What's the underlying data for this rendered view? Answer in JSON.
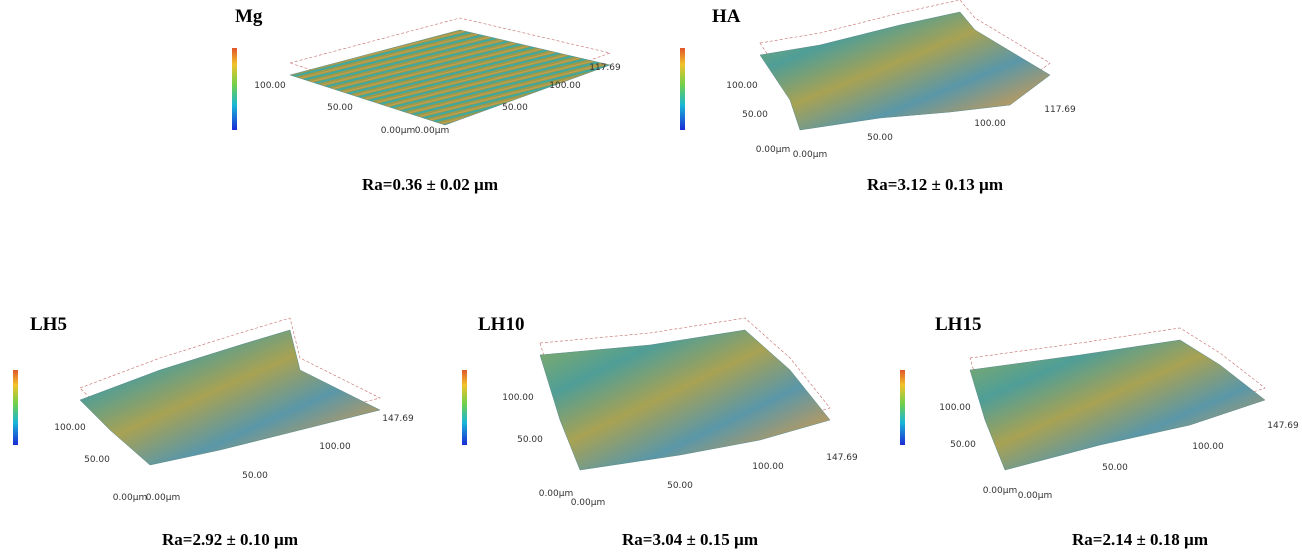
{
  "panels": [
    {
      "label": "Mg",
      "roughness": "Ra=0.36 ± 0.02 µm",
      "axis_labels": [
        "100.00",
        "50.00",
        "0.00µm",
        "0.00µm",
        "50.00",
        "100.00",
        "117.69"
      ]
    },
    {
      "label": "HA",
      "roughness": "Ra=3.12 ± 0.13 µm",
      "axis_labels": [
        "100.00",
        "50.00",
        "0.00µm",
        "0.00µm",
        "50.00",
        "100.00",
        "117.69"
      ]
    },
    {
      "label": "LH5",
      "roughness": "Ra=2.92 ± 0.10 µm",
      "axis_labels": [
        "100.00",
        "50.00",
        "0.00µm",
        "0.00µm",
        "50.00",
        "100.00",
        "147.69"
      ]
    },
    {
      "label": "LH10",
      "roughness": "Ra=3.04 ± 0.15 µm",
      "axis_labels": [
        "100.00",
        "50.00",
        "0.00µm",
        "0.00µm",
        "50.00",
        "100.00",
        "147.69"
      ]
    },
    {
      "label": "LH15",
      "roughness": "Ra=2.14 ± 0.18 µm",
      "axis_labels": [
        "100.00",
        "50.00",
        "0.00µm",
        "0.00µm",
        "50.00",
        "100.00",
        "147.69"
      ]
    }
  ]
}
